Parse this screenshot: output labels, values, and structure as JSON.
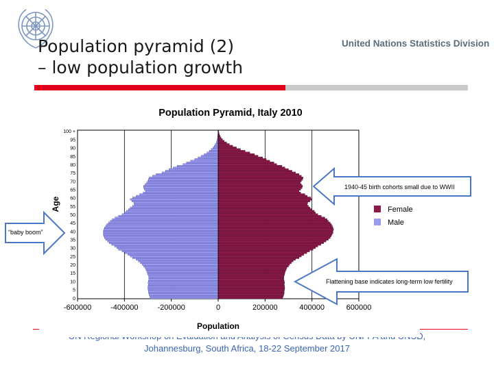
{
  "header": {
    "title_line1": "Population pyramid (2)",
    "title_line2": "– low population growth",
    "org": "United Nations Statistics Division"
  },
  "logo_icon": "un-emblem-icon",
  "footer": {
    "line1": "UN Regional Workshop on Evaluation and Analysis of Census Data by UNFPA and UNSD,",
    "line2": "Johannesburg, South Africa, 18-22 September 2017"
  },
  "annotations": {
    "cohorts": "1940-45 birth cohorts small due to WWII",
    "baby_boom": "“baby boom”",
    "base": "Flattening base indicates long-term low fertility"
  },
  "colors": {
    "accent_red": "#e2001a",
    "female": "#8b1a4a",
    "male": "#9a9af0",
    "arrow": "#4a78c4"
  },
  "chart_data": {
    "type": "bar",
    "orientation": "horizontal",
    "title": "Population Pyramid, Italy 2010",
    "xlabel": "Population",
    "ylabel": "Age",
    "xlim": [
      -600000,
      600000
    ],
    "x_ticks": [
      -600000,
      -400000,
      -200000,
      0,
      200000,
      400000,
      600000
    ],
    "x_tick_labels": [
      "-600000",
      "-400000",
      "-200000",
      "0",
      "200000",
      "400000",
      "600000"
    ],
    "y_tick_labels": [
      "0",
      "5",
      "10",
      "15",
      "20",
      "25",
      "30",
      "35",
      "40",
      "45",
      "50",
      "55",
      "60",
      "65",
      "70",
      "75",
      "80",
      "85",
      "90",
      "95",
      "100 +"
    ],
    "legend": {
      "position": "right",
      "entries": [
        "Female",
        "Male"
      ]
    },
    "ages": [
      "0",
      "1",
      "2",
      "3",
      "4",
      "5",
      "6",
      "7",
      "8",
      "9",
      "10",
      "11",
      "12",
      "13",
      "14",
      "15",
      "16",
      "17",
      "18",
      "19",
      "20",
      "21",
      "22",
      "23",
      "24",
      "25",
      "26",
      "27",
      "28",
      "29",
      "30",
      "31",
      "32",
      "33",
      "34",
      "35",
      "36",
      "37",
      "38",
      "39",
      "40",
      "41",
      "42",
      "43",
      "44",
      "45",
      "46",
      "47",
      "48",
      "49",
      "50",
      "51",
      "52",
      "53",
      "54",
      "55",
      "56",
      "57",
      "58",
      "59",
      "60",
      "61",
      "62",
      "63",
      "64",
      "65",
      "66",
      "67",
      "68",
      "69",
      "70",
      "71",
      "72",
      "73",
      "74",
      "75",
      "76",
      "77",
      "78",
      "79",
      "80",
      "81",
      "82",
      "83",
      "84",
      "85",
      "86",
      "87",
      "88",
      "89",
      "90",
      "91",
      "92",
      "93",
      "94",
      "95",
      "96",
      "97",
      "98",
      "99",
      "100 +"
    ],
    "series": [
      {
        "name": "Female",
        "values": [
          275000,
          278000,
          280000,
          282000,
          282000,
          283000,
          284000,
          283000,
          282000,
          283000,
          282000,
          280000,
          280000,
          281000,
          283000,
          285000,
          287000,
          290000,
          293000,
          300000,
          305000,
          312000,
          320000,
          330000,
          345000,
          355000,
          365000,
          378000,
          390000,
          405000,
          415000,
          425000,
          438000,
          450000,
          460000,
          470000,
          478000,
          482000,
          486000,
          490000,
          490000,
          492000,
          490000,
          487000,
          483000,
          478000,
          470000,
          465000,
          455000,
          440000,
          425000,
          415000,
          410000,
          400000,
          392000,
          385000,
          380000,
          382000,
          392000,
          400000,
          395000,
          380000,
          370000,
          352000,
          345000,
          352000,
          358000,
          360000,
          355000,
          350000,
          355000,
          360000,
          362000,
          355000,
          345000,
          330000,
          315000,
          300000,
          285000,
          272000,
          250000,
          238000,
          220000,
          205000,
          190000,
          170000,
          155000,
          135000,
          115000,
          95000,
          78000,
          62000,
          48000,
          36000,
          26000,
          18000,
          12000,
          8000,
          5000,
          3000,
          2000
        ]
      },
      {
        "name": "Male",
        "values": [
          290000,
          292000,
          295000,
          297000,
          298000,
          299000,
          300000,
          299000,
          298000,
          299000,
          298000,
          296000,
          296000,
          297000,
          300000,
          302000,
          305000,
          308000,
          312000,
          318000,
          324000,
          332000,
          340000,
          350000,
          365000,
          375000,
          385000,
          398000,
          410000,
          425000,
          432000,
          442000,
          455000,
          465000,
          472000,
          480000,
          485000,
          488000,
          490000,
          490000,
          490000,
          488000,
          485000,
          480000,
          475000,
          468000,
          460000,
          452000,
          440000,
          425000,
          410000,
          400000,
          392000,
          383000,
          375000,
          365000,
          358000,
          360000,
          368000,
          375000,
          365000,
          350000,
          335000,
          320000,
          310000,
          315000,
          318000,
          318000,
          312000,
          305000,
          300000,
          298000,
          294000,
          280000,
          265000,
          240000,
          225000,
          210000,
          192000,
          175000,
          150000,
          135000,
          118000,
          100000,
          86000,
          72000,
          60000,
          48000,
          38000,
          30000,
          22000,
          17000,
          12000,
          8000,
          6000,
          4000,
          3000,
          2000,
          1500,
          1000,
          1000
        ]
      }
    ]
  }
}
